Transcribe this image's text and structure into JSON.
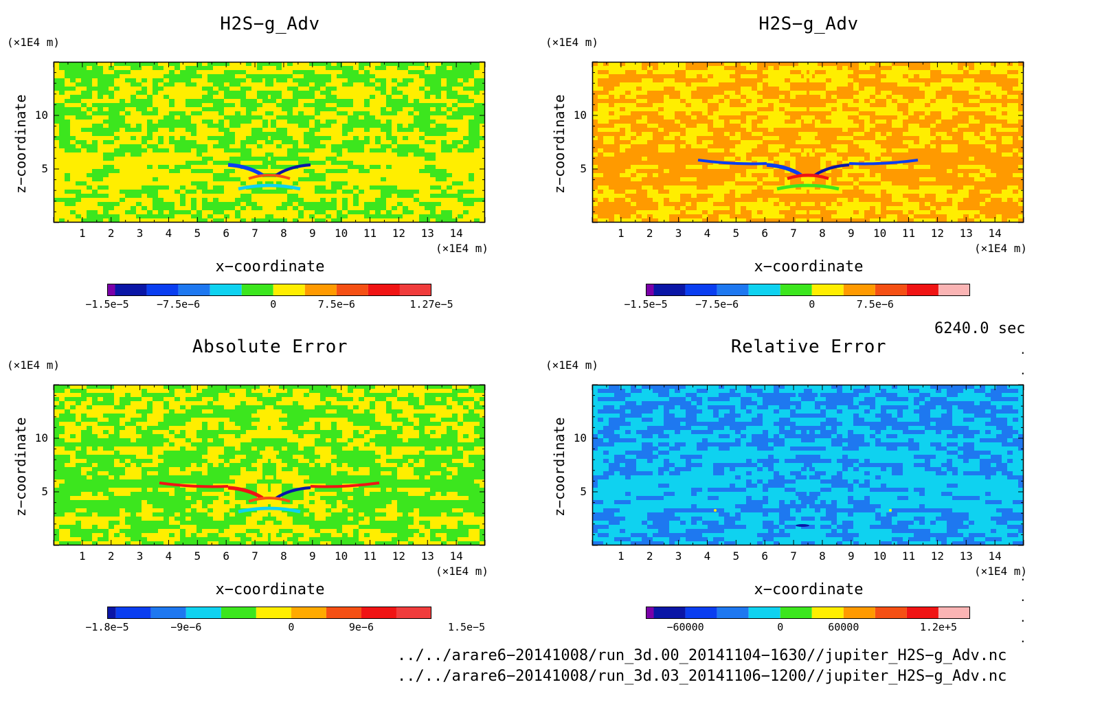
{
  "panels": [
    {
      "title": "H2S−g_Adv",
      "y_unit": "(×1E4 m)",
      "x_unit": "(×1E4 m)",
      "xlabel": "x−coordinate",
      "ylabel": "z−coordinate",
      "x_ticks": [
        "1",
        "2",
        "3",
        "4",
        "5",
        "6",
        "7",
        "8",
        "9",
        "10",
        "11",
        "12",
        "13",
        "14"
      ],
      "y_ticks": [
        "10",
        "5"
      ],
      "colorbar": {
        "colors": [
          "#7a00a8",
          "#0a16a6",
          "#0a3ef0",
          "#1e78f0",
          "#0fd2f0",
          "#3ce61e",
          "#ffee00",
          "#ff9a00",
          "#f55014",
          "#f01414",
          "#f03c3c"
        ],
        "labels": [
          "−1.5e−5",
          "−7.5e−6",
          "0",
          "7.5e−6",
          "1.27e−5"
        ]
      },
      "background": "#ffee00",
      "secondary": "#3ce61e"
    },
    {
      "title": "H2S−g_Adv",
      "y_unit": "(×1E4 m)",
      "x_unit": "(×1E4 m)",
      "xlabel": "x−coordinate",
      "ylabel": "z−coordinate",
      "x_ticks": [
        "1",
        "2",
        "3",
        "4",
        "5",
        "6",
        "7",
        "8",
        "9",
        "10",
        "11",
        "12",
        "13",
        "14"
      ],
      "y_ticks": [
        "10",
        "5"
      ],
      "colorbar": {
        "colors": [
          "#7a00a8",
          "#0a16a6",
          "#0a3ef0",
          "#1e78f0",
          "#0fd2f0",
          "#3ce61e",
          "#ffee00",
          "#ff9a00",
          "#f55014",
          "#f01414",
          "#fab4b4"
        ],
        "labels": [
          "−1.5e−5",
          "−7.5e−6",
          "0",
          "7.5e−6"
        ]
      },
      "background": "#ff9a00",
      "secondary": "#ffee00"
    },
    {
      "title": "Absolute Error",
      "y_unit": "(×1E4 m)",
      "x_unit": "(×1E4 m)",
      "xlabel": "x−coordinate",
      "ylabel": "z−coordinate",
      "x_ticks": [
        "1",
        "2",
        "3",
        "4",
        "5",
        "6",
        "7",
        "8",
        "9",
        "10",
        "11",
        "12",
        "13",
        "14"
      ],
      "y_ticks": [
        "10",
        "5"
      ],
      "colorbar": {
        "colors": [
          "#0a16a6",
          "#0a3ef0",
          "#1e78f0",
          "#0fd2f0",
          "#3ce61e",
          "#ffee00",
          "#ffaa00",
          "#f55014",
          "#f01414",
          "#f03c3c"
        ],
        "labels": [
          "−1.8e−5",
          "−9e−6",
          "0",
          "9e−6",
          "1.5e−5"
        ]
      },
      "background": "#3ce61e",
      "secondary": "#ffee00"
    },
    {
      "title": "Relative Error",
      "y_unit": "(×1E4 m)",
      "x_unit": "(×1E4 m)",
      "xlabel": "x−coordinate",
      "ylabel": "z−coordinate",
      "x_ticks": [
        "1",
        "2",
        "3",
        "4",
        "5",
        "6",
        "7",
        "8",
        "9",
        "10",
        "11",
        "12",
        "13",
        "14"
      ],
      "y_ticks": [
        "10",
        "5"
      ],
      "colorbar": {
        "colors": [
          "#7a00a8",
          "#0a16a6",
          "#0a3ef0",
          "#1e78f0",
          "#0fd2f0",
          "#3ce61e",
          "#ffee00",
          "#ff9a00",
          "#f55014",
          "#f01414",
          "#fab4b4"
        ],
        "labels": [
          "−60000",
          "0",
          "60000",
          "1.2e+5"
        ]
      },
      "background": "#0fd2f0",
      "secondary": "#1e78f0"
    }
  ],
  "timestamp": "6240.0 sec",
  "file_paths": [
    "../../arare6−20141008/run_3d.00_20141104−1630//jupiter_H2S−g_Adv.nc",
    "../../arare6−20141008/run_3d.03_20141106−1200//jupiter_H2S−g_Adv.nc"
  ],
  "chart_data": [
    {
      "type": "heatmap",
      "title": "H2S−g_Adv",
      "xlabel": "x−coordinate",
      "ylabel": "z−coordinate",
      "x_unit": "(×1E4 m)",
      "y_unit": "(×1E4 m)",
      "xlim": [
        0,
        15
      ],
      "ylim": [
        0,
        15
      ],
      "color_range": [
        -1.5e-05,
        1.27e-05
      ],
      "dominant_value": 0
    },
    {
      "type": "heatmap",
      "title": "H2S−g_Adv",
      "xlabel": "x−coordinate",
      "ylabel": "z−coordinate",
      "x_unit": "(×1E4 m)",
      "y_unit": "(×1E4 m)",
      "xlim": [
        0,
        15
      ],
      "ylim": [
        0,
        15
      ],
      "color_range": [
        -1.5e-05,
        7.5e-06
      ],
      "dominant_value": 0
    },
    {
      "type": "heatmap",
      "title": "Absolute Error",
      "xlabel": "x−coordinate",
      "ylabel": "z−coordinate",
      "x_unit": "(×1E4 m)",
      "y_unit": "(×1E4 m)",
      "xlim": [
        0,
        15
      ],
      "ylim": [
        0,
        15
      ],
      "color_range": [
        -1.8e-05,
        1.5e-05
      ],
      "dominant_value": 0
    },
    {
      "type": "heatmap",
      "title": "Relative Error",
      "xlabel": "x−coordinate",
      "ylabel": "z−coordinate",
      "x_unit": "(×1E4 m)",
      "y_unit": "(×1E4 m)",
      "xlim": [
        0,
        15
      ],
      "ylim": [
        0,
        15
      ],
      "color_range": [
        -60000,
        120000.0
      ],
      "dominant_value": 0
    }
  ]
}
